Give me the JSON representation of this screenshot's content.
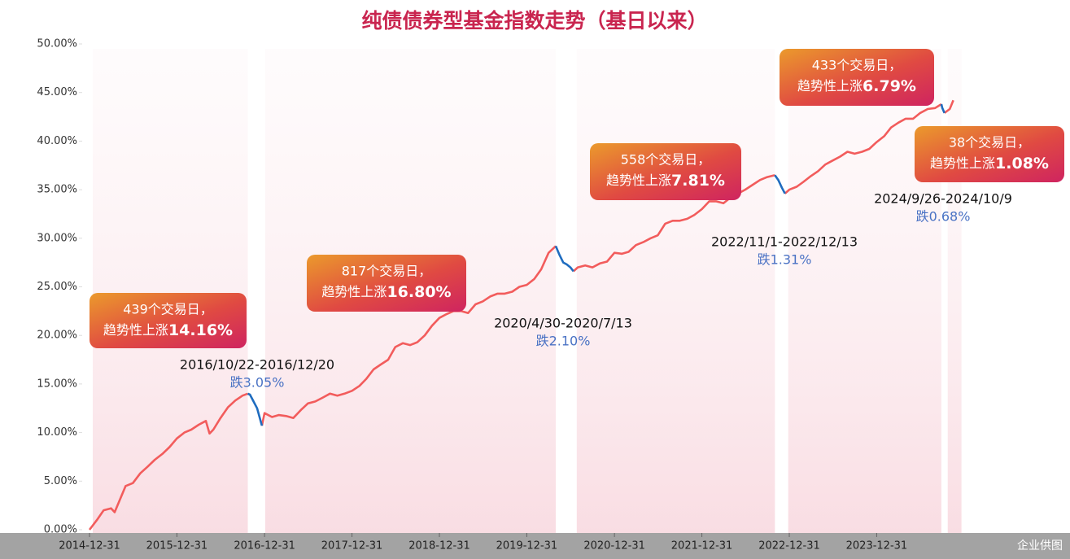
{
  "chart_data": {
    "type": "line",
    "title": "纯债债券型基金指数走势（基日以来）",
    "watermark": "企业供图",
    "x": [
      "2014-12-31",
      "2015-01-31",
      "2015-02-28",
      "2015-03-31",
      "2015-04-15",
      "2015-05-31",
      "2015-06-30",
      "2015-07-31",
      "2015-08-31",
      "2015-09-30",
      "2015-10-31",
      "2015-11-30",
      "2015-12-31",
      "2016-01-31",
      "2016-02-29",
      "2016-03-31",
      "2016-04-30",
      "2016-05-15",
      "2016-05-31",
      "2016-06-30",
      "2016-07-31",
      "2016-08-31",
      "2016-09-30",
      "2016-10-22",
      "2016-10-31",
      "2016-11-15",
      "2016-11-30",
      "2016-12-20",
      "2016-12-31",
      "2017-01-31",
      "2017-02-28",
      "2017-03-31",
      "2017-04-30",
      "2017-05-31",
      "2017-06-30",
      "2017-07-31",
      "2017-08-31",
      "2017-09-30",
      "2017-10-31",
      "2017-11-30",
      "2017-12-31",
      "2018-01-31",
      "2018-02-28",
      "2018-03-31",
      "2018-04-30",
      "2018-05-31",
      "2018-06-30",
      "2018-07-31",
      "2018-08-31",
      "2018-09-30",
      "2018-10-31",
      "2018-11-30",
      "2018-12-31",
      "2019-01-31",
      "2019-02-28",
      "2019-03-31",
      "2019-04-30",
      "2019-05-31",
      "2019-06-30",
      "2019-07-31",
      "2019-08-31",
      "2019-09-30",
      "2019-10-31",
      "2019-11-30",
      "2019-12-31",
      "2020-01-31",
      "2020-02-29",
      "2020-03-31",
      "2020-04-30",
      "2020-05-15",
      "2020-05-31",
      "2020-06-15",
      "2020-06-30",
      "2020-07-13",
      "2020-07-31",
      "2020-08-31",
      "2020-09-30",
      "2020-10-31",
      "2020-11-30",
      "2020-12-31",
      "2021-01-31",
      "2021-02-28",
      "2021-03-31",
      "2021-04-30",
      "2021-05-31",
      "2021-06-30",
      "2021-07-31",
      "2021-08-31",
      "2021-09-30",
      "2021-10-31",
      "2021-11-30",
      "2021-12-31",
      "2022-01-31",
      "2022-02-28",
      "2022-03-31",
      "2022-04-30",
      "2022-05-31",
      "2022-06-30",
      "2022-07-31",
      "2022-08-31",
      "2022-09-30",
      "2022-11-01",
      "2022-11-15",
      "2022-11-30",
      "2022-12-13",
      "2022-12-31",
      "2023-01-31",
      "2023-02-28",
      "2023-03-31",
      "2023-04-30",
      "2023-05-31",
      "2023-06-30",
      "2023-07-31",
      "2023-08-31",
      "2023-09-30",
      "2023-10-31",
      "2023-11-30",
      "2023-12-31",
      "2024-01-31",
      "2024-02-29",
      "2024-03-31",
      "2024-04-30",
      "2024-05-31",
      "2024-06-30",
      "2024-07-31",
      "2024-08-31",
      "2024-09-26",
      "2024-09-30",
      "2024-10-09",
      "2024-10-31",
      "2024-11-15"
    ],
    "series": [
      {
        "color": "#f25c5c",
        "values": [
          0,
          1.0,
          2.0,
          2.2,
          1.8,
          4.5,
          4.8,
          5.8,
          6.5,
          7.2,
          7.8,
          8.5,
          9.4,
          10.0,
          10.3,
          10.8,
          11.2,
          9.9,
          10.3,
          11.5,
          12.6,
          13.3,
          13.8,
          14.0,
          null,
          null,
          null,
          10.7,
          12.0,
          11.6,
          11.8,
          11.7,
          11.5,
          12.3,
          13.0,
          13.2,
          13.6,
          14.0,
          13.8,
          14.0,
          14.3,
          14.8,
          15.5,
          16.5,
          17.0,
          17.5,
          18.8,
          19.2,
          19.0,
          19.3,
          20.0,
          21.0,
          21.8,
          22.2,
          22.5,
          22.5,
          22.3,
          23.2,
          23.5,
          24.0,
          24.3,
          24.3,
          24.5,
          25.0,
          25.2,
          25.8,
          26.8,
          28.5,
          29.2,
          null,
          null,
          null,
          null,
          26.6,
          27.0,
          27.2,
          27.0,
          27.4,
          27.6,
          28.5,
          28.4,
          28.6,
          29.3,
          29.6,
          30.0,
          30.3,
          31.5,
          31.8,
          31.8,
          32.0,
          32.4,
          33.0,
          33.8,
          33.8,
          33.6,
          34.2,
          34.6,
          35.0,
          35.5,
          36.0,
          36.3,
          36.5,
          null,
          null,
          34.6,
          35.0,
          35.3,
          35.8,
          36.4,
          36.9,
          37.6,
          38.0,
          38.4,
          38.9,
          38.7,
          38.9,
          39.2,
          39.9,
          40.5,
          41.4,
          41.9,
          42.3,
          42.3,
          42.9,
          43.3,
          43.4,
          43.8,
          null,
          42.9,
          43.3,
          44.2
        ]
      },
      {
        "color": "#1f6cbf",
        "axis": "y",
        "values": [
          null,
          null,
          null,
          null,
          null,
          null,
          null,
          null,
          null,
          null,
          null,
          null,
          null,
          null,
          null,
          null,
          null,
          null,
          null,
          null,
          null,
          null,
          null,
          14.0,
          13.9,
          13.2,
          12.5,
          10.7,
          null,
          null,
          null,
          null,
          null,
          null,
          null,
          null,
          null,
          null,
          null,
          null,
          null,
          null,
          null,
          null,
          null,
          null,
          null,
          null,
          null,
          null,
          null,
          null,
          null,
          null,
          null,
          null,
          null,
          null,
          null,
          null,
          null,
          null,
          null,
          null,
          null,
          null,
          null,
          null,
          29.2,
          28.3,
          27.5,
          27.3,
          27.0,
          26.6,
          null,
          null,
          null,
          null,
          null,
          null,
          null,
          null,
          null,
          null,
          null,
          null,
          null,
          null,
          null,
          null,
          null,
          null,
          null,
          null,
          null,
          null,
          null,
          null,
          null,
          null,
          null,
          36.5,
          36.0,
          35.2,
          34.6,
          null,
          null,
          null,
          null,
          null,
          null,
          null,
          null,
          null,
          null,
          null,
          null,
          null,
          null,
          null,
          null,
          null,
          null,
          null,
          null,
          null,
          43.8,
          43.4,
          42.9,
          null,
          null
        ]
      }
    ],
    "xlim": [
      "2014-12-31",
      "2025-02-28"
    ],
    "xticks": [
      "2014-12-31",
      "2015-12-31",
      "2016-12-31",
      "2017-12-31",
      "2018-12-31",
      "2019-12-31",
      "2020-12-31",
      "2021-12-31",
      "2022-12-31",
      "2023-12-31"
    ],
    "ylim": [
      0,
      50
    ],
    "yticks": [
      {
        "value": 0,
        "label": "0.00%"
      },
      {
        "value": 5,
        "label": "5.00%"
      },
      {
        "value": 10,
        "label": "10.00%"
      },
      {
        "value": 15,
        "label": "15.00%"
      },
      {
        "value": 20,
        "label": "20.00%"
      },
      {
        "value": 25,
        "label": "25.00%"
      },
      {
        "value": 30,
        "label": "30.00%"
      },
      {
        "value": 35,
        "label": "35.00%"
      },
      {
        "value": 40,
        "label": "40.00%"
      },
      {
        "value": 45,
        "label": "45.00%"
      },
      {
        "value": 50,
        "label": "50.00%"
      }
    ],
    "callouts": [
      {
        "line1": "439个交易日，",
        "line2": "趋势性上涨",
        "value": "14.16%"
      },
      {
        "line1": "817个交易日，",
        "line2": "趋势性上涨",
        "value": "16.80%"
      },
      {
        "line1": "558个交易日，",
        "line2": "趋势性上涨",
        "value": "7.81%"
      },
      {
        "line1": "433个交易日，",
        "line2": "趋势性上涨",
        "value": "6.79%"
      },
      {
        "line1": "38个交易日，",
        "line2": "趋势性上涨",
        "value": "1.08%"
      }
    ],
    "drawdowns": [
      {
        "period": "2016/10/22-2016/12/20",
        "change": "跌3.05%"
      },
      {
        "period": "2020/4/30-2020/7/13",
        "change": "跌2.10%"
      },
      {
        "period": "2022/11/1-2022/12/13",
        "change": "跌1.31%"
      },
      {
        "period": "2024/9/26-2024/10/9",
        "change": "跌0.68%"
      }
    ]
  }
}
